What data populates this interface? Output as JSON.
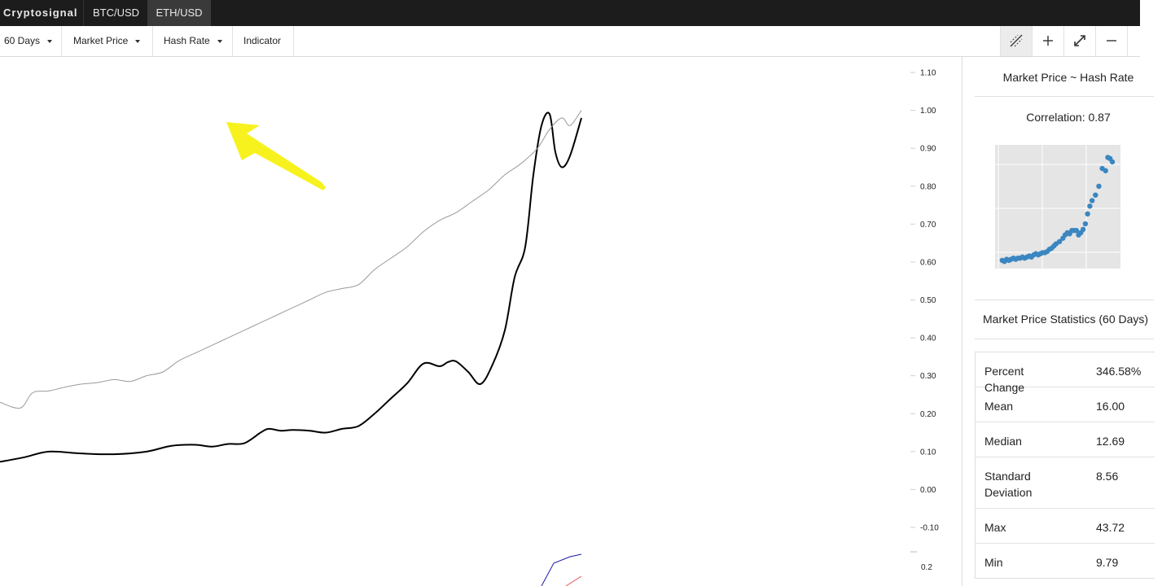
{
  "app": {
    "brand": "Cryptosignal",
    "tabs": [
      {
        "label": "BTC/USD",
        "active": false
      },
      {
        "label": "ETH/USD",
        "active": true
      }
    ]
  },
  "toolbar": {
    "range": "60 Days",
    "series_a": "Market Price",
    "series_b": "Hash Rate",
    "indicator": "Indicator",
    "tools": [
      "crosshair-hatch-icon",
      "plus-icon",
      "expand-icon",
      "minus-icon"
    ]
  },
  "chart_data": {
    "type": "line",
    "y_ticks": [
      "1.10",
      "1.00",
      "0.90",
      "0.80",
      "0.70",
      "0.60",
      "0.50",
      "0.40",
      "0.30",
      "0.20",
      "0.10",
      "0.00",
      "-0.10"
    ],
    "lower_tick": "0.2",
    "ylim": [
      -0.1,
      1.1
    ],
    "series": [
      {
        "color": "#000000",
        "x": [
          0,
          30,
          60,
          100,
          140,
          180,
          210,
          240,
          260,
          280,
          300,
          320,
          330,
          345,
          360,
          380,
          400,
          420,
          440,
          460,
          480,
          500,
          520,
          540,
          550,
          560,
          575,
          590,
          605,
          620,
          632,
          645,
          655,
          665,
          675,
          682,
          690,
          700,
          714
        ],
        "y": [
          0.073,
          0.085,
          0.1,
          0.095,
          0.093,
          0.1,
          0.115,
          0.118,
          0.113,
          0.12,
          0.122,
          0.15,
          0.16,
          0.155,
          0.157,
          0.155,
          0.15,
          0.16,
          0.167,
          0.2,
          0.24,
          0.28,
          0.332,
          0.325,
          0.336,
          0.338,
          0.31,
          0.278,
          0.33,
          0.42,
          0.56,
          0.64,
          0.83,
          0.96,
          0.99,
          0.89,
          0.85,
          0.88,
          0.98
        ]
      },
      {
        "color": "#9a9a9a",
        "x": [
          0,
          25,
          40,
          60,
          80,
          100,
          120,
          140,
          160,
          180,
          200,
          220,
          240,
          260,
          280,
          300,
          320,
          340,
          360,
          380,
          400,
          420,
          440,
          460,
          480,
          500,
          520,
          540,
          560,
          580,
          600,
          620,
          640,
          660,
          675,
          690,
          700,
          714
        ],
        "y": [
          0.23,
          0.215,
          0.255,
          0.26,
          0.27,
          0.278,
          0.282,
          0.29,
          0.285,
          0.3,
          0.31,
          0.34,
          0.36,
          0.38,
          0.4,
          0.42,
          0.44,
          0.46,
          0.48,
          0.5,
          0.52,
          0.53,
          0.54,
          0.58,
          0.61,
          0.64,
          0.68,
          0.71,
          0.73,
          0.76,
          0.79,
          0.83,
          0.86,
          0.9,
          0.95,
          0.98,
          0.96,
          1.0
        ]
      }
    ]
  },
  "side": {
    "corr_title": "Market Price ~ Hash Rate",
    "correlation": "Correlation: 0.87",
    "scatter_color": "#3a86c0",
    "scatter_points": [
      [
        0.02,
        0.03
      ],
      [
        0.04,
        0.02
      ],
      [
        0.06,
        0.04
      ],
      [
        0.08,
        0.03
      ],
      [
        0.1,
        0.04
      ],
      [
        0.12,
        0.05
      ],
      [
        0.14,
        0.04
      ],
      [
        0.16,
        0.05
      ],
      [
        0.18,
        0.05
      ],
      [
        0.2,
        0.06
      ],
      [
        0.22,
        0.05
      ],
      [
        0.24,
        0.06
      ],
      [
        0.26,
        0.07
      ],
      [
        0.28,
        0.06
      ],
      [
        0.3,
        0.08
      ],
      [
        0.32,
        0.09
      ],
      [
        0.34,
        0.08
      ],
      [
        0.36,
        0.09
      ],
      [
        0.38,
        0.1
      ],
      [
        0.4,
        0.1
      ],
      [
        0.42,
        0.11
      ],
      [
        0.44,
        0.13
      ],
      [
        0.46,
        0.14
      ],
      [
        0.48,
        0.16
      ],
      [
        0.5,
        0.18
      ],
      [
        0.53,
        0.2
      ],
      [
        0.56,
        0.23
      ],
      [
        0.58,
        0.26
      ],
      [
        0.6,
        0.28
      ],
      [
        0.62,
        0.27
      ],
      [
        0.64,
        0.3
      ],
      [
        0.66,
        0.3
      ],
      [
        0.68,
        0.3
      ],
      [
        0.7,
        0.26
      ],
      [
        0.72,
        0.28
      ],
      [
        0.74,
        0.31
      ],
      [
        0.76,
        0.36
      ],
      [
        0.78,
        0.45
      ],
      [
        0.8,
        0.52
      ],
      [
        0.82,
        0.57
      ],
      [
        0.85,
        0.62
      ],
      [
        0.88,
        0.7
      ],
      [
        0.91,
        0.86
      ],
      [
        0.94,
        0.84
      ],
      [
        0.96,
        0.96
      ],
      [
        0.98,
        0.95
      ],
      [
        1.0,
        0.92
      ]
    ],
    "stats_title": "Market Price Statistics (60 Days)",
    "stats": [
      {
        "label": "Percent Change",
        "value": "346.58%"
      },
      {
        "label": "Mean",
        "value": "16.00"
      },
      {
        "label": "Median",
        "value": "12.69"
      },
      {
        "label": "Standard Deviation",
        "value": "8.56"
      },
      {
        "label": "Max",
        "value": "43.72"
      },
      {
        "label": "Min",
        "value": "9.79"
      }
    ]
  }
}
